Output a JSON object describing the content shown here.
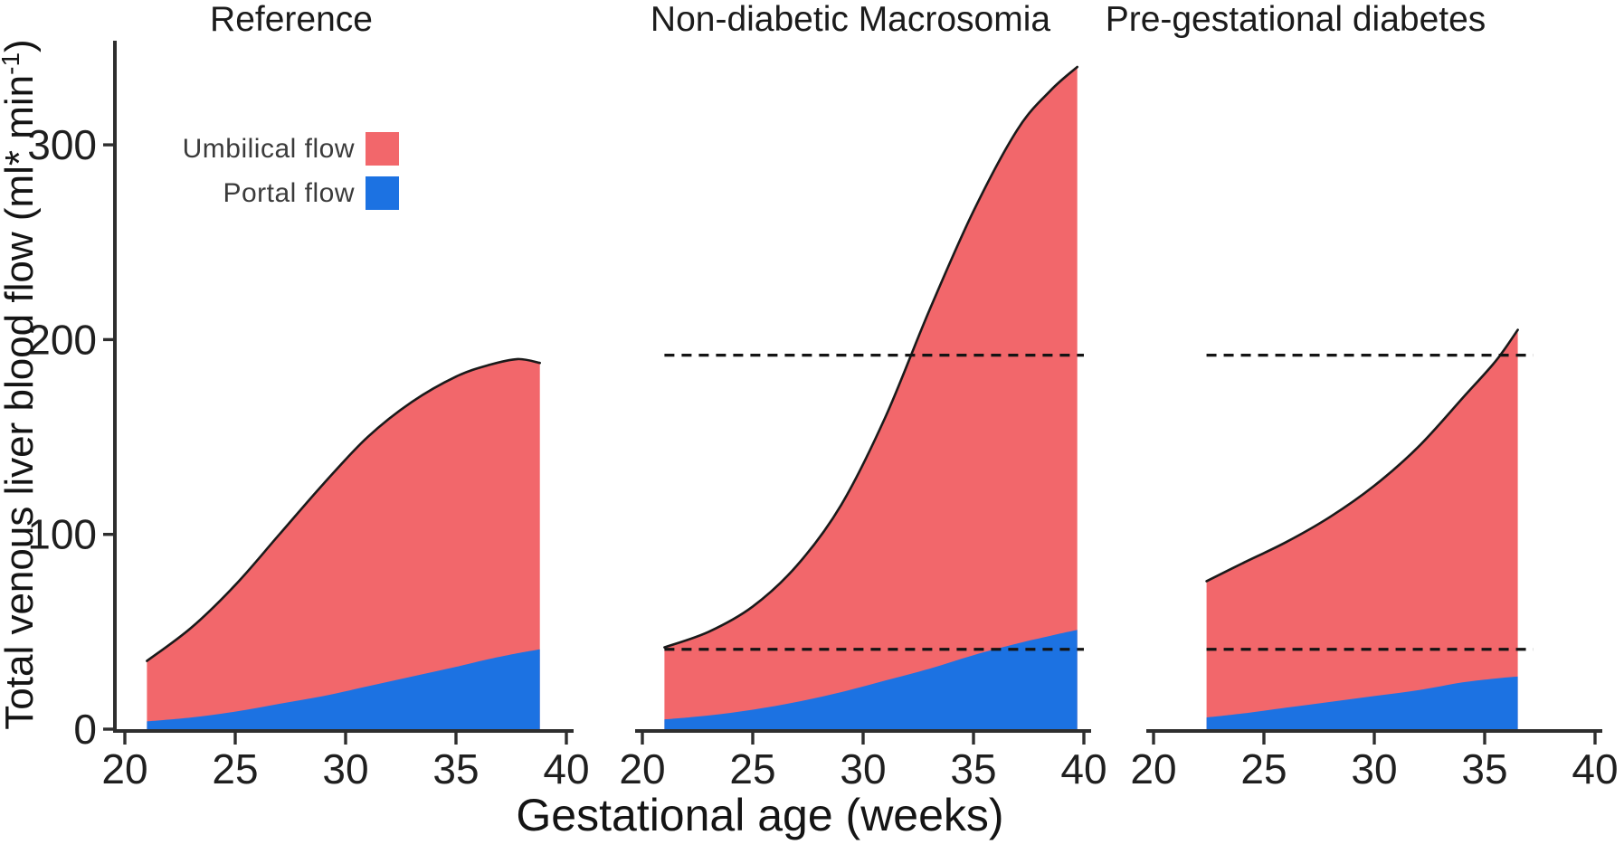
{
  "figure": {
    "x_axis": {
      "label": "Gestational age (weeks)",
      "ticks": [
        20,
        25,
        30,
        35,
        40
      ]
    },
    "y_axis": {
      "label_main": "Total venous liver blood flow (ml* min",
      "label_superscript": "-1",
      "label_end": ")",
      "ticks": [
        0,
        100,
        200,
        300
      ],
      "max_shown": 350
    },
    "legend": [
      {
        "label": "Umbilical flow",
        "color": "#f2676b"
      },
      {
        "label": "Portal flow",
        "color": "#1c72e2"
      }
    ],
    "colors": {
      "umbilical_fill": "#f2676b",
      "portal_fill": "#1c72e2",
      "curve_stroke": "#1a1a1a",
      "dashed_line": "#141414",
      "axis": "#2e2e2e",
      "text": "#1f1f1f"
    }
  },
  "chart_data": [
    {
      "type": "area",
      "title": "Reference",
      "stacked": true,
      "x_unit": "weeks",
      "x_range": [
        20,
        40
      ],
      "weeks": [
        21,
        23,
        25,
        27,
        29,
        31,
        33,
        35,
        36.5,
        37.8,
        38.8
      ],
      "series": [
        {
          "name": "Total flow (top of umbilical area)",
          "values": [
            35,
            52,
            74,
            100,
            126,
            150,
            168,
            181,
            187,
            190,
            188
          ]
        },
        {
          "name": "Portal flow",
          "values": [
            4,
            6,
            9,
            13,
            17,
            22,
            27,
            32,
            36,
            39,
            41
          ]
        }
      ],
      "reference_lines": []
    },
    {
      "type": "area",
      "title": "Non-diabetic Macrosomia",
      "stacked": true,
      "x_unit": "weeks",
      "x_range": [
        20,
        40
      ],
      "weeks": [
        21,
        23,
        25,
        27,
        29,
        31,
        33,
        35,
        37,
        38.5,
        39.7
      ],
      "series": [
        {
          "name": "Total flow (top of umbilical area)",
          "values": [
            42,
            50,
            63,
            84,
            115,
            160,
            215,
            266,
            308,
            328,
            340
          ]
        },
        {
          "name": "Portal flow",
          "values": [
            5,
            7,
            10,
            14,
            19,
            25,
            31,
            38,
            44,
            48,
            51
          ]
        }
      ],
      "reference_lines": [
        {
          "value": 192,
          "from_week": 21,
          "to_week": 40
        },
        {
          "value": 41,
          "from_week": 21,
          "to_week": 40
        }
      ]
    },
    {
      "type": "area",
      "title": "Pre-gestational diabetes",
      "stacked": true,
      "x_unit": "weeks",
      "x_range": [
        20,
        40
      ],
      "weeks": [
        22.4,
        24,
        26,
        28,
        30,
        32,
        34,
        35.5,
        36.5
      ],
      "series": [
        {
          "name": "Total flow (top of umbilical area)",
          "values": [
            76,
            85,
            96,
            109,
            125,
            145,
            170,
            189,
            205
          ]
        },
        {
          "name": "Portal flow",
          "values": [
            6,
            8,
            11,
            14,
            17,
            20,
            24,
            26,
            27
          ]
        }
      ],
      "reference_lines": [
        {
          "value": 192,
          "from_week": 22.4,
          "to_week": 37.2
        },
        {
          "value": 41,
          "from_week": 22.4,
          "to_week": 37.2
        }
      ]
    }
  ]
}
